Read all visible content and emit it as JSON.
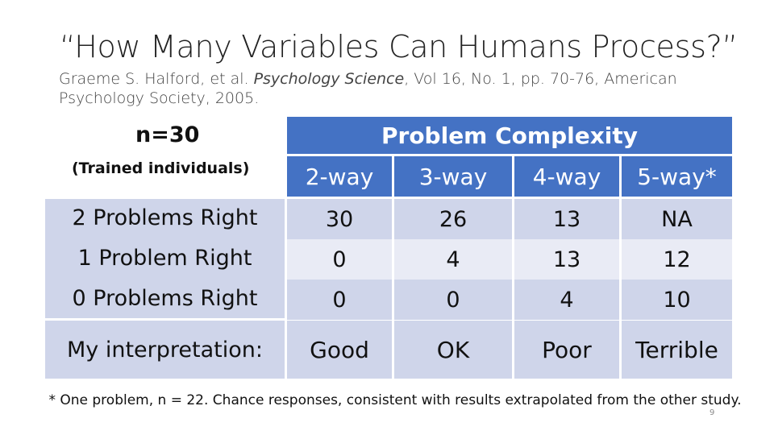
{
  "title": "“How Many Variables Can Humans Process?”",
  "citation": {
    "pre": "Graeme S. Halford, et al. ",
    "journal": "Psychology Science",
    "post": ", Vol 16, No. 1, pp. 70-76, American Psychology Society, 2005."
  },
  "sample": {
    "n_label": "n=30",
    "note": "(Trained individuals)"
  },
  "table": {
    "group_header": "Problem Complexity",
    "columns": [
      "2-way",
      "3-way",
      "4-way",
      "5-way*"
    ],
    "row_labels": [
      "2 Problems Right",
      "1 Problem Right",
      "0 Problems Right"
    ],
    "rows": [
      [
        "30",
        "26",
        "13",
        "NA"
      ],
      [
        "0",
        "4",
        "13",
        "12"
      ],
      [
        "0",
        "0",
        "4",
        "10"
      ]
    ],
    "interpretation_label": "My interpretation:",
    "interpretation": [
      "Good",
      "OK",
      "Poor",
      "Terrible"
    ]
  },
  "footnote": "* One problem, n = 22.  Chance responses, consistent with results extrapolated from the other study.",
  "page_number": "9",
  "colors": {
    "header_blue": "#4472c4",
    "band_dark": "#cfd5ea",
    "band_light": "#e9ebf5"
  }
}
